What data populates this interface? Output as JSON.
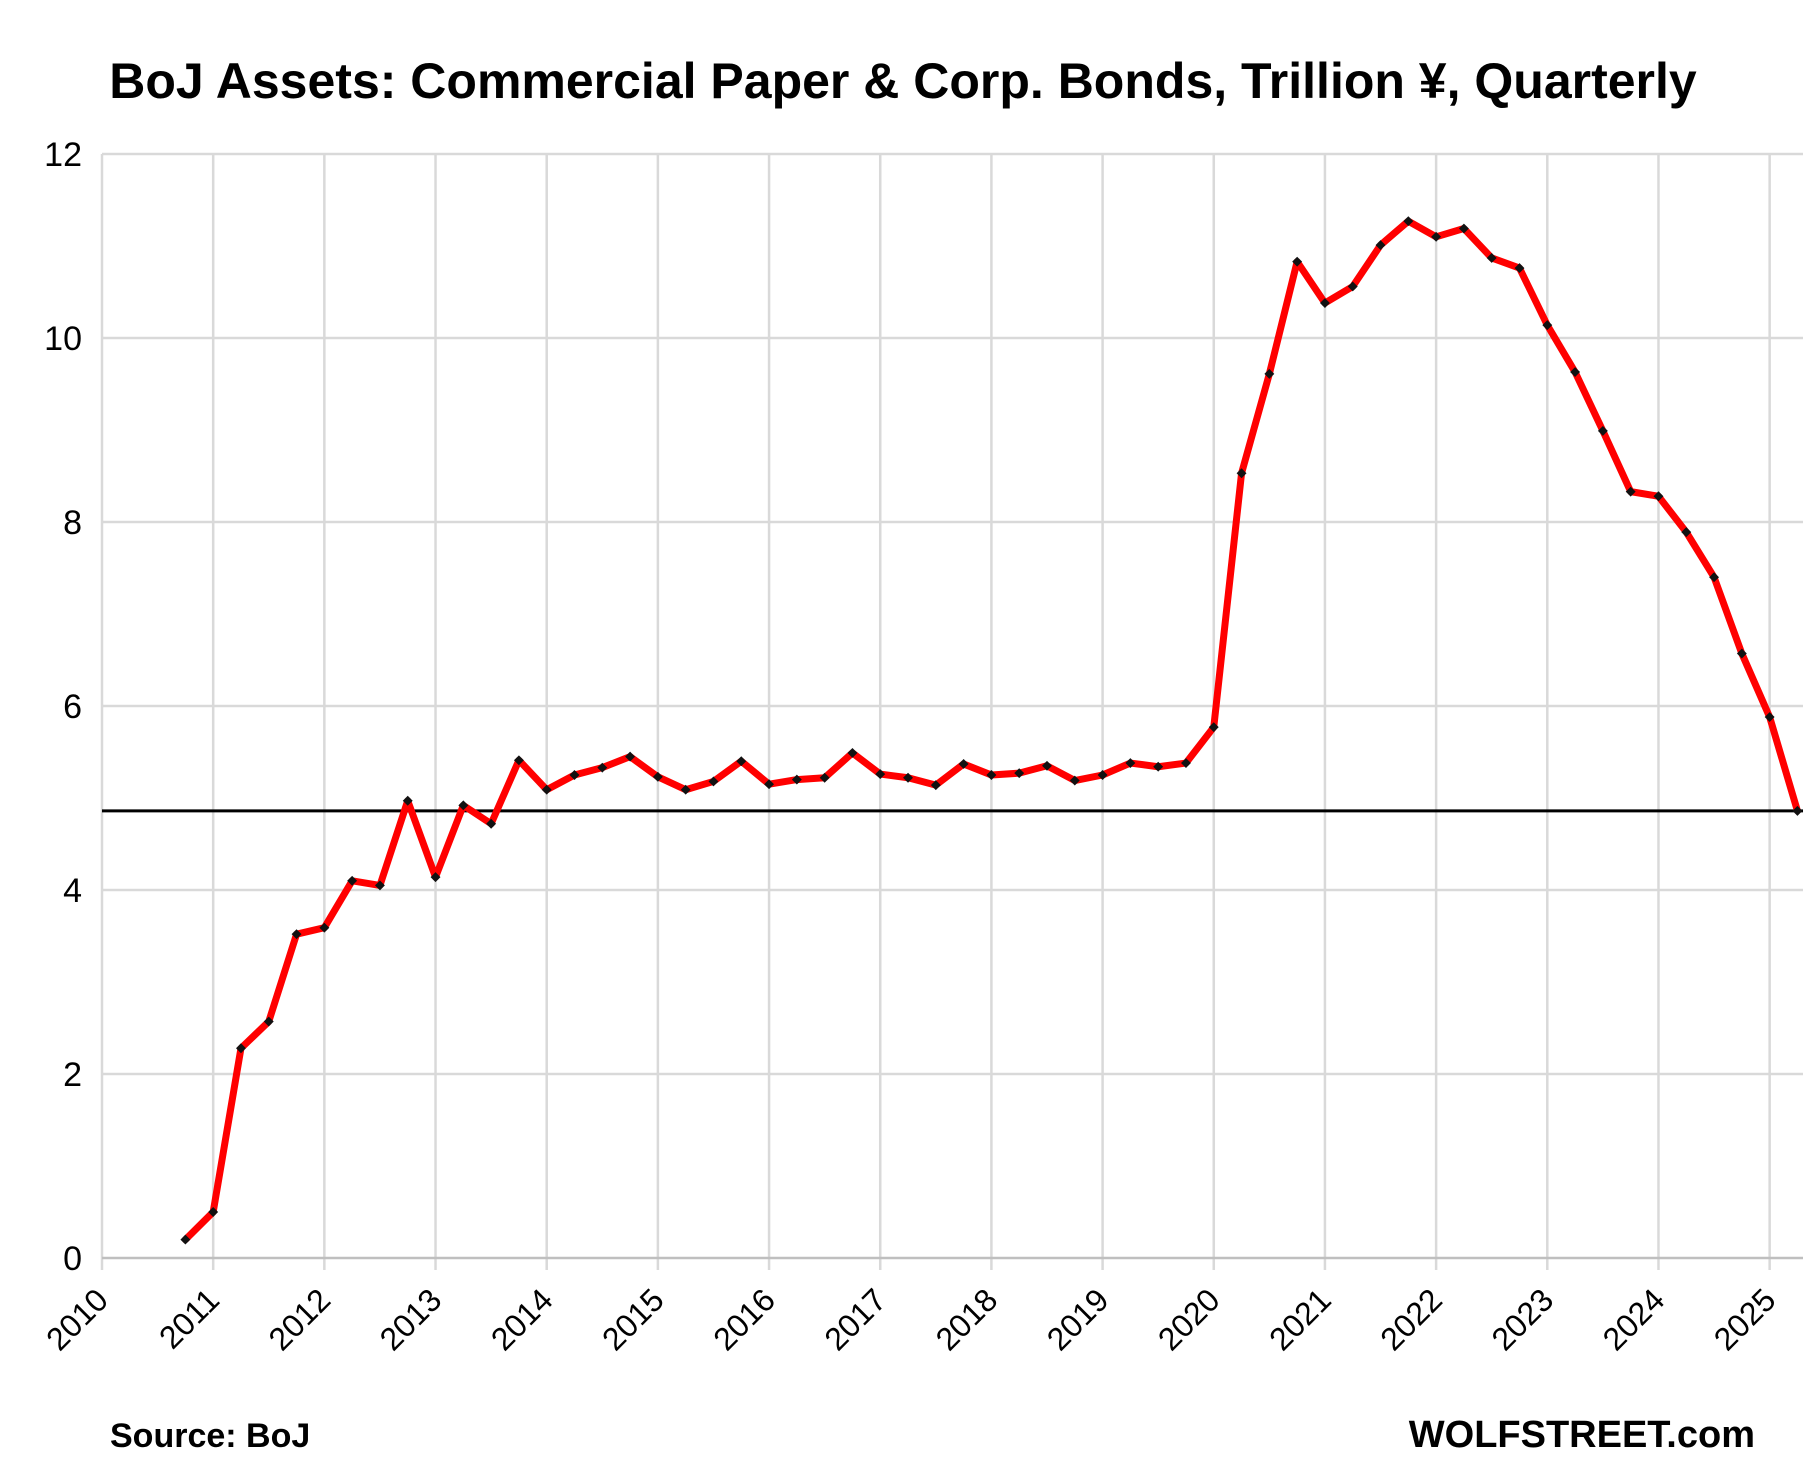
{
  "chart_data": {
    "type": "line",
    "title": "BoJ Assets: Commercial Paper & Corp. Bonds, Trillion ¥, Quarterly",
    "xlabel": "",
    "ylabel": "",
    "source": "Source: BoJ",
    "watermark": "WOLFSTREET.com",
    "xlim": [
      2010,
      2025.3
    ],
    "ylim": [
      0,
      12
    ],
    "y_ticks": [
      0,
      2,
      4,
      6,
      8,
      10,
      12
    ],
    "x_ticks": [
      "2010",
      "2011",
      "2012",
      "2013",
      "2014",
      "2015",
      "2016",
      "2017",
      "2018",
      "2019",
      "2020",
      "2021",
      "2022",
      "2023",
      "2024",
      "2025"
    ],
    "grid": true,
    "reference_line": 4.86,
    "colors": {
      "line": "#ff0000",
      "marker": "#111111",
      "grid": "#d9d9d9",
      "reference": "#000000",
      "text": "#000000"
    },
    "series": [
      {
        "x": [
          2010.75,
          2011.0,
          2011.25,
          2011.5,
          2011.75,
          2012.0,
          2012.25,
          2012.5,
          2012.75,
          2013.0,
          2013.25,
          2013.5,
          2013.75,
          2014.0,
          2014.25,
          2014.5,
          2014.75,
          2015.0,
          2015.25,
          2015.5,
          2015.75,
          2016.0,
          2016.25,
          2016.5,
          2016.75,
          2017.0,
          2017.25,
          2017.5,
          2017.75,
          2018.0,
          2018.25,
          2018.5,
          2018.75,
          2019.0,
          2019.25,
          2019.5,
          2019.75,
          2020.0,
          2020.25,
          2020.5,
          2020.75,
          2021.0,
          2021.25,
          2021.5,
          2021.75,
          2022.0,
          2022.25,
          2022.5,
          2022.75,
          2023.0,
          2023.25,
          2023.5,
          2023.75,
          2024.0,
          2024.25,
          2024.5,
          2024.75,
          2025.0,
          2025.25
        ],
        "values": [
          0.2,
          0.5,
          2.28,
          2.57,
          3.52,
          3.59,
          4.1,
          4.05,
          4.97,
          4.14,
          4.92,
          4.72,
          5.41,
          5.09,
          5.25,
          5.33,
          5.45,
          5.23,
          5.09,
          5.18,
          5.4,
          5.15,
          5.2,
          5.22,
          5.49,
          5.26,
          5.22,
          5.14,
          5.37,
          5.25,
          5.27,
          5.35,
          5.19,
          5.25,
          5.38,
          5.34,
          5.38,
          5.77,
          8.53,
          9.61,
          10.83,
          10.38,
          10.56,
          11.01,
          11.27,
          11.1,
          11.19,
          10.87,
          10.76,
          10.14,
          9.63,
          8.99,
          8.33,
          8.28,
          7.89,
          7.4,
          6.57,
          5.88,
          4.86
        ]
      }
    ]
  }
}
